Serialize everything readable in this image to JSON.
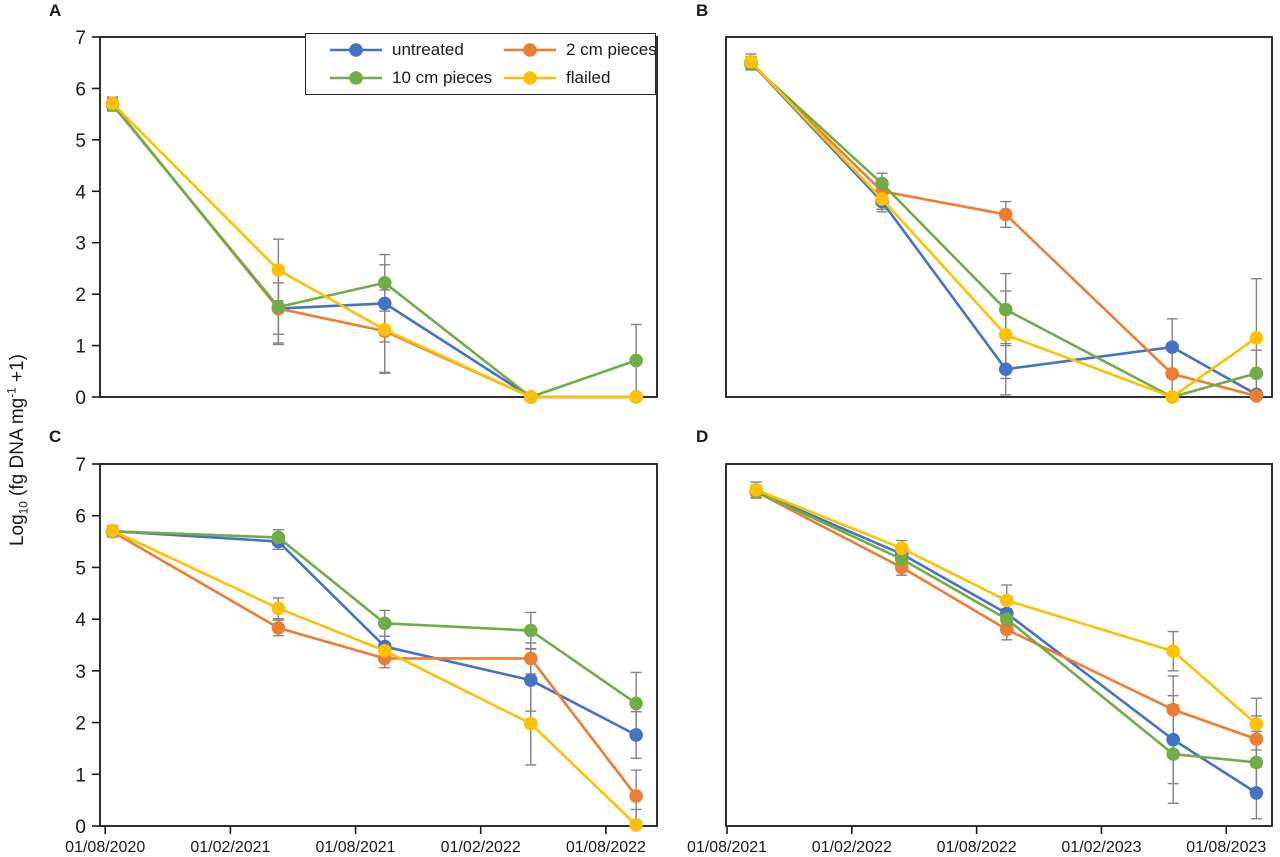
{
  "figure": {
    "panel_labels": [
      "A",
      "B",
      "C",
      "D"
    ],
    "y_axis_title_parts": {
      "prefix": "Log",
      "sub": "10",
      "mid": " (fg DNA mg",
      "sup": "-1",
      "suffix": " +1)"
    }
  },
  "legend": {
    "items": [
      {
        "label": "untreated",
        "color": "#4472C4"
      },
      {
        "label": "2 cm pieces",
        "color": "#ED7D31"
      },
      {
        "label": "10 cm pieces",
        "color": "#70AD47"
      },
      {
        "label": "flailed",
        "color": "#FFC000"
      }
    ]
  },
  "style": {
    "axis_color": "#1a1a1a",
    "error_bar_color": "#848484",
    "marker_radius": 6.8,
    "line_width": 2.6
  },
  "chart_data": [
    {
      "panel": "A",
      "type": "line",
      "ylim": [
        0,
        7
      ],
      "yticks": [
        0,
        1,
        2,
        3,
        4,
        5,
        6,
        7
      ],
      "grid": false,
      "show_y_tick_labels": true,
      "show_x_tick_labels": false,
      "x_tick_labels": [
        "01/08/2020",
        "01/02/2021",
        "01/08/2021",
        "01/02/2022",
        "01/08/2022"
      ],
      "x_tick_months": [
        0,
        6,
        12,
        18,
        24
      ],
      "x_domain_months": [
        -0.25,
        26.45
      ],
      "x_months": [
        0.35,
        8.3,
        13.4,
        20.4,
        25.45
      ],
      "series": [
        {
          "name": "untreated",
          "color": "#4472C4",
          "values": [
            5.7,
            1.72,
            1.82,
            0.0,
            0.0
          ],
          "err": [
            0.12,
            0.5,
            0.75,
            0,
            0
          ]
        },
        {
          "name": "2 cm pieces",
          "color": "#ED7D31",
          "values": [
            5.7,
            1.72,
            1.28,
            0.0,
            0.0
          ],
          "err": [
            0.12,
            0.7,
            0.8,
            0,
            0
          ]
        },
        {
          "name": "10 cm pieces",
          "color": "#70AD47",
          "values": [
            5.68,
            1.75,
            2.22,
            0.0,
            0.71
          ],
          "err": [
            0.12,
            0.7,
            0.55,
            0,
            0.7
          ]
        },
        {
          "name": "flailed",
          "color": "#FFC000",
          "values": [
            5.71,
            2.47,
            1.31,
            0.0,
            0.0
          ],
          "err": [
            0.12,
            0.6,
            0.85,
            0,
            0
          ]
        }
      ]
    },
    {
      "panel": "B",
      "type": "line",
      "ylim": [
        0,
        7
      ],
      "yticks": [
        0,
        1,
        2,
        3,
        4,
        5,
        6,
        7
      ],
      "grid": false,
      "show_y_tick_labels": false,
      "show_x_tick_labels": false,
      "x_tick_labels": [
        "01/08/2021",
        "01/02/2022",
        "01/08/2022",
        "01/02/2023",
        "01/08/2023"
      ],
      "x_tick_months": [
        0,
        6,
        12,
        18,
        24
      ],
      "x_domain_months": [
        -0.05,
        26.2
      ],
      "x_months": [
        1.15,
        7.45,
        13.4,
        21.4,
        25.45
      ],
      "series": [
        {
          "name": "untreated",
          "color": "#4472C4",
          "values": [
            6.5,
            3.8,
            0.54,
            0.97,
            0.05
          ],
          "err": [
            0.12,
            0.2,
            0.5,
            0.55,
            0
          ]
        },
        {
          "name": "2 cm pieces",
          "color": "#ED7D31",
          "values": [
            6.48,
            4.0,
            3.55,
            0.45,
            0.02
          ],
          "err": [
            0.12,
            0.2,
            0.25,
            0.5,
            0
          ]
        },
        {
          "name": "10 cm pieces",
          "color": "#70AD47",
          "values": [
            6.48,
            4.15,
            1.7,
            0.0,
            0.46
          ],
          "err": [
            0.12,
            0.2,
            0.7,
            0,
            0.45
          ]
        },
        {
          "name": "flailed",
          "color": "#FFC000",
          "values": [
            6.52,
            3.85,
            1.21,
            0.0,
            1.15
          ],
          "err": [
            0.15,
            0.2,
            0.85,
            0,
            1.15
          ]
        }
      ]
    },
    {
      "panel": "C",
      "type": "line",
      "ylim": [
        0,
        7
      ],
      "yticks": [
        0,
        1,
        2,
        3,
        4,
        5,
        6,
        7
      ],
      "grid": false,
      "show_y_tick_labels": true,
      "show_x_tick_labels": true,
      "x_tick_labels": [
        "01/08/2020",
        "01/02/2021",
        "01/08/2021",
        "01/02/2022",
        "01/08/2022"
      ],
      "x_tick_months": [
        0,
        6,
        12,
        18,
        24
      ],
      "x_domain_months": [
        -0.25,
        26.45
      ],
      "x_months": [
        0.35,
        8.3,
        13.4,
        20.4,
        25.45
      ],
      "series": [
        {
          "name": "untreated",
          "color": "#4472C4",
          "values": [
            5.7,
            5.5,
            3.47,
            2.82,
            1.76
          ],
          "err": [
            0.1,
            0.15,
            0.2,
            0.6,
            0.45
          ]
        },
        {
          "name": "2 cm pieces",
          "color": "#ED7D31",
          "values": [
            5.69,
            3.83,
            3.24,
            3.24,
            0.58
          ],
          "err": [
            0.1,
            0.15,
            0.18,
            0.3,
            0.5
          ]
        },
        {
          "name": "10 cm pieces",
          "color": "#70AD47",
          "values": [
            5.7,
            5.58,
            3.92,
            3.78,
            2.37
          ],
          "err": [
            0.1,
            0.15,
            0.25,
            0.35,
            0.6
          ]
        },
        {
          "name": "flailed",
          "color": "#FFC000",
          "values": [
            5.71,
            4.21,
            3.39,
            1.98,
            0.02
          ],
          "err": [
            0.1,
            0.2,
            0.15,
            0.8,
            0.3
          ]
        }
      ]
    },
    {
      "panel": "D",
      "type": "line",
      "ylim": [
        0,
        7
      ],
      "yticks": [
        0,
        1,
        2,
        3,
        4,
        5,
        6,
        7
      ],
      "grid": false,
      "show_y_tick_labels": false,
      "show_x_tick_labels": true,
      "x_tick_labels": [
        "01/08/2021",
        "01/02/2022",
        "01/08/2022",
        "01/02/2023",
        "01/08/2023"
      ],
      "x_tick_months": [
        0,
        6,
        12,
        18,
        24
      ],
      "x_domain_months": [
        -0.05,
        26.2
      ],
      "x_months": [
        1.4,
        8.4,
        13.45,
        21.45,
        25.45
      ],
      "series": [
        {
          "name": "untreated",
          "color": "#4472C4",
          "values": [
            6.47,
            5.26,
            4.11,
            1.67,
            0.64
          ],
          "err": [
            0.12,
            0.15,
            0.2,
            0.85,
            0.5
          ]
        },
        {
          "name": "2 cm pieces",
          "color": "#ED7D31",
          "values": [
            6.46,
            5.0,
            3.8,
            2.25,
            1.68
          ],
          "err": [
            0.12,
            0.15,
            0.2,
            0.65,
            0.45
          ]
        },
        {
          "name": "10 cm pieces",
          "color": "#70AD47",
          "values": [
            6.47,
            5.16,
            4.0,
            1.39,
            1.23
          ],
          "err": [
            0.12,
            0.15,
            0.2,
            0.95,
            0.6
          ]
        },
        {
          "name": "flailed",
          "color": "#FFC000",
          "values": [
            6.5,
            5.37,
            4.36,
            3.38,
            1.97
          ],
          "err": [
            0.15,
            0.15,
            0.3,
            0.38,
            0.5
          ]
        }
      ]
    }
  ]
}
